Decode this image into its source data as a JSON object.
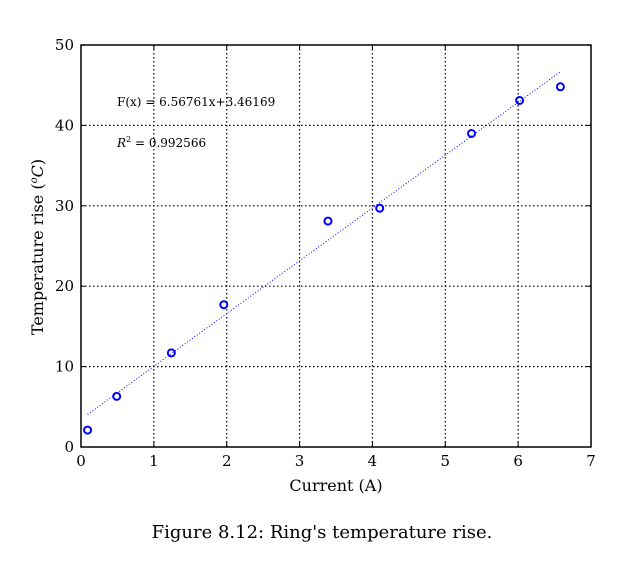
{
  "caption": "Figure 8.12: Ring's temperature rise.",
  "chart_data": {
    "type": "scatter",
    "title": "",
    "xlabel": "Current (A)",
    "ylabel_main": "Temperature rise (",
    "ylabel_super": "o",
    "ylabel_unit": "C",
    "ylabel_close": ")",
    "xlim": [
      0,
      7
    ],
    "ylim": [
      0,
      50
    ],
    "x_ticks": [
      0,
      1,
      2,
      3,
      4,
      5,
      6,
      7
    ],
    "y_ticks": [
      0,
      10,
      20,
      30,
      40,
      50
    ],
    "grid": true,
    "points": [
      {
        "x": 0.09,
        "y": 2.1
      },
      {
        "x": 0.49,
        "y": 6.3
      },
      {
        "x": 1.24,
        "y": 11.7
      },
      {
        "x": 1.96,
        "y": 17.7
      },
      {
        "x": 3.39,
        "y": 28.1
      },
      {
        "x": 4.1,
        "y": 29.7
      },
      {
        "x": 5.36,
        "y": 39.0
      },
      {
        "x": 6.02,
        "y": 43.1
      },
      {
        "x": 6.58,
        "y": 44.8
      }
    ],
    "fit": {
      "slope": 6.56761,
      "intercept": 3.46169,
      "x_range": [
        0.09,
        6.58
      ]
    },
    "annotations": {
      "equation": "F(x) = 6.56761x+3.46169",
      "r2_label": "R",
      "r2_power": "2",
      "r2_value": " = 0.992566"
    },
    "marker_color": "#0000ff",
    "fit_color": "#0000ff"
  }
}
